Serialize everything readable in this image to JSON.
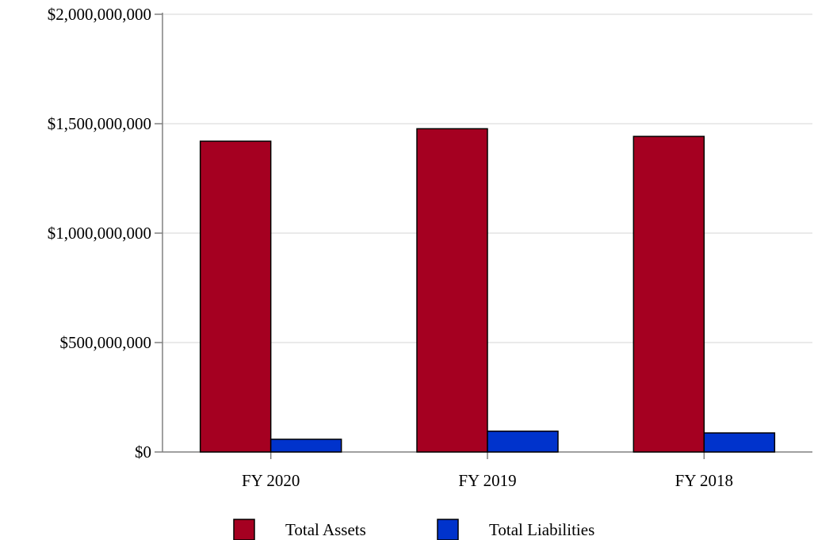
{
  "chart_data": {
    "type": "bar",
    "categories": [
      "FY 2020",
      "FY 2019",
      "FY 2018"
    ],
    "series": [
      {
        "name": "Total Assets",
        "color": "#A50021",
        "values": [
          1420000000,
          1477000000,
          1442000000
        ]
      },
      {
        "name": "Total Liabilities",
        "color": "#0033CC",
        "values": [
          58000000,
          95000000,
          87000000
        ]
      }
    ],
    "yticks": [
      {
        "value": 0,
        "label": "$0"
      },
      {
        "value": 500000000,
        "label": "$500,000,000"
      },
      {
        "value": 1000000000,
        "label": "$1,000,000,000"
      },
      {
        "value": 1500000000,
        "label": "$1,500,000,000"
      },
      {
        "value": 2000000000,
        "label": "$2,000,000,000"
      }
    ],
    "ylim": [
      0,
      2000000000
    ],
    "title": "",
    "xlabel": "",
    "ylabel": "",
    "grid": true,
    "legend_position": "bottom-center"
  }
}
